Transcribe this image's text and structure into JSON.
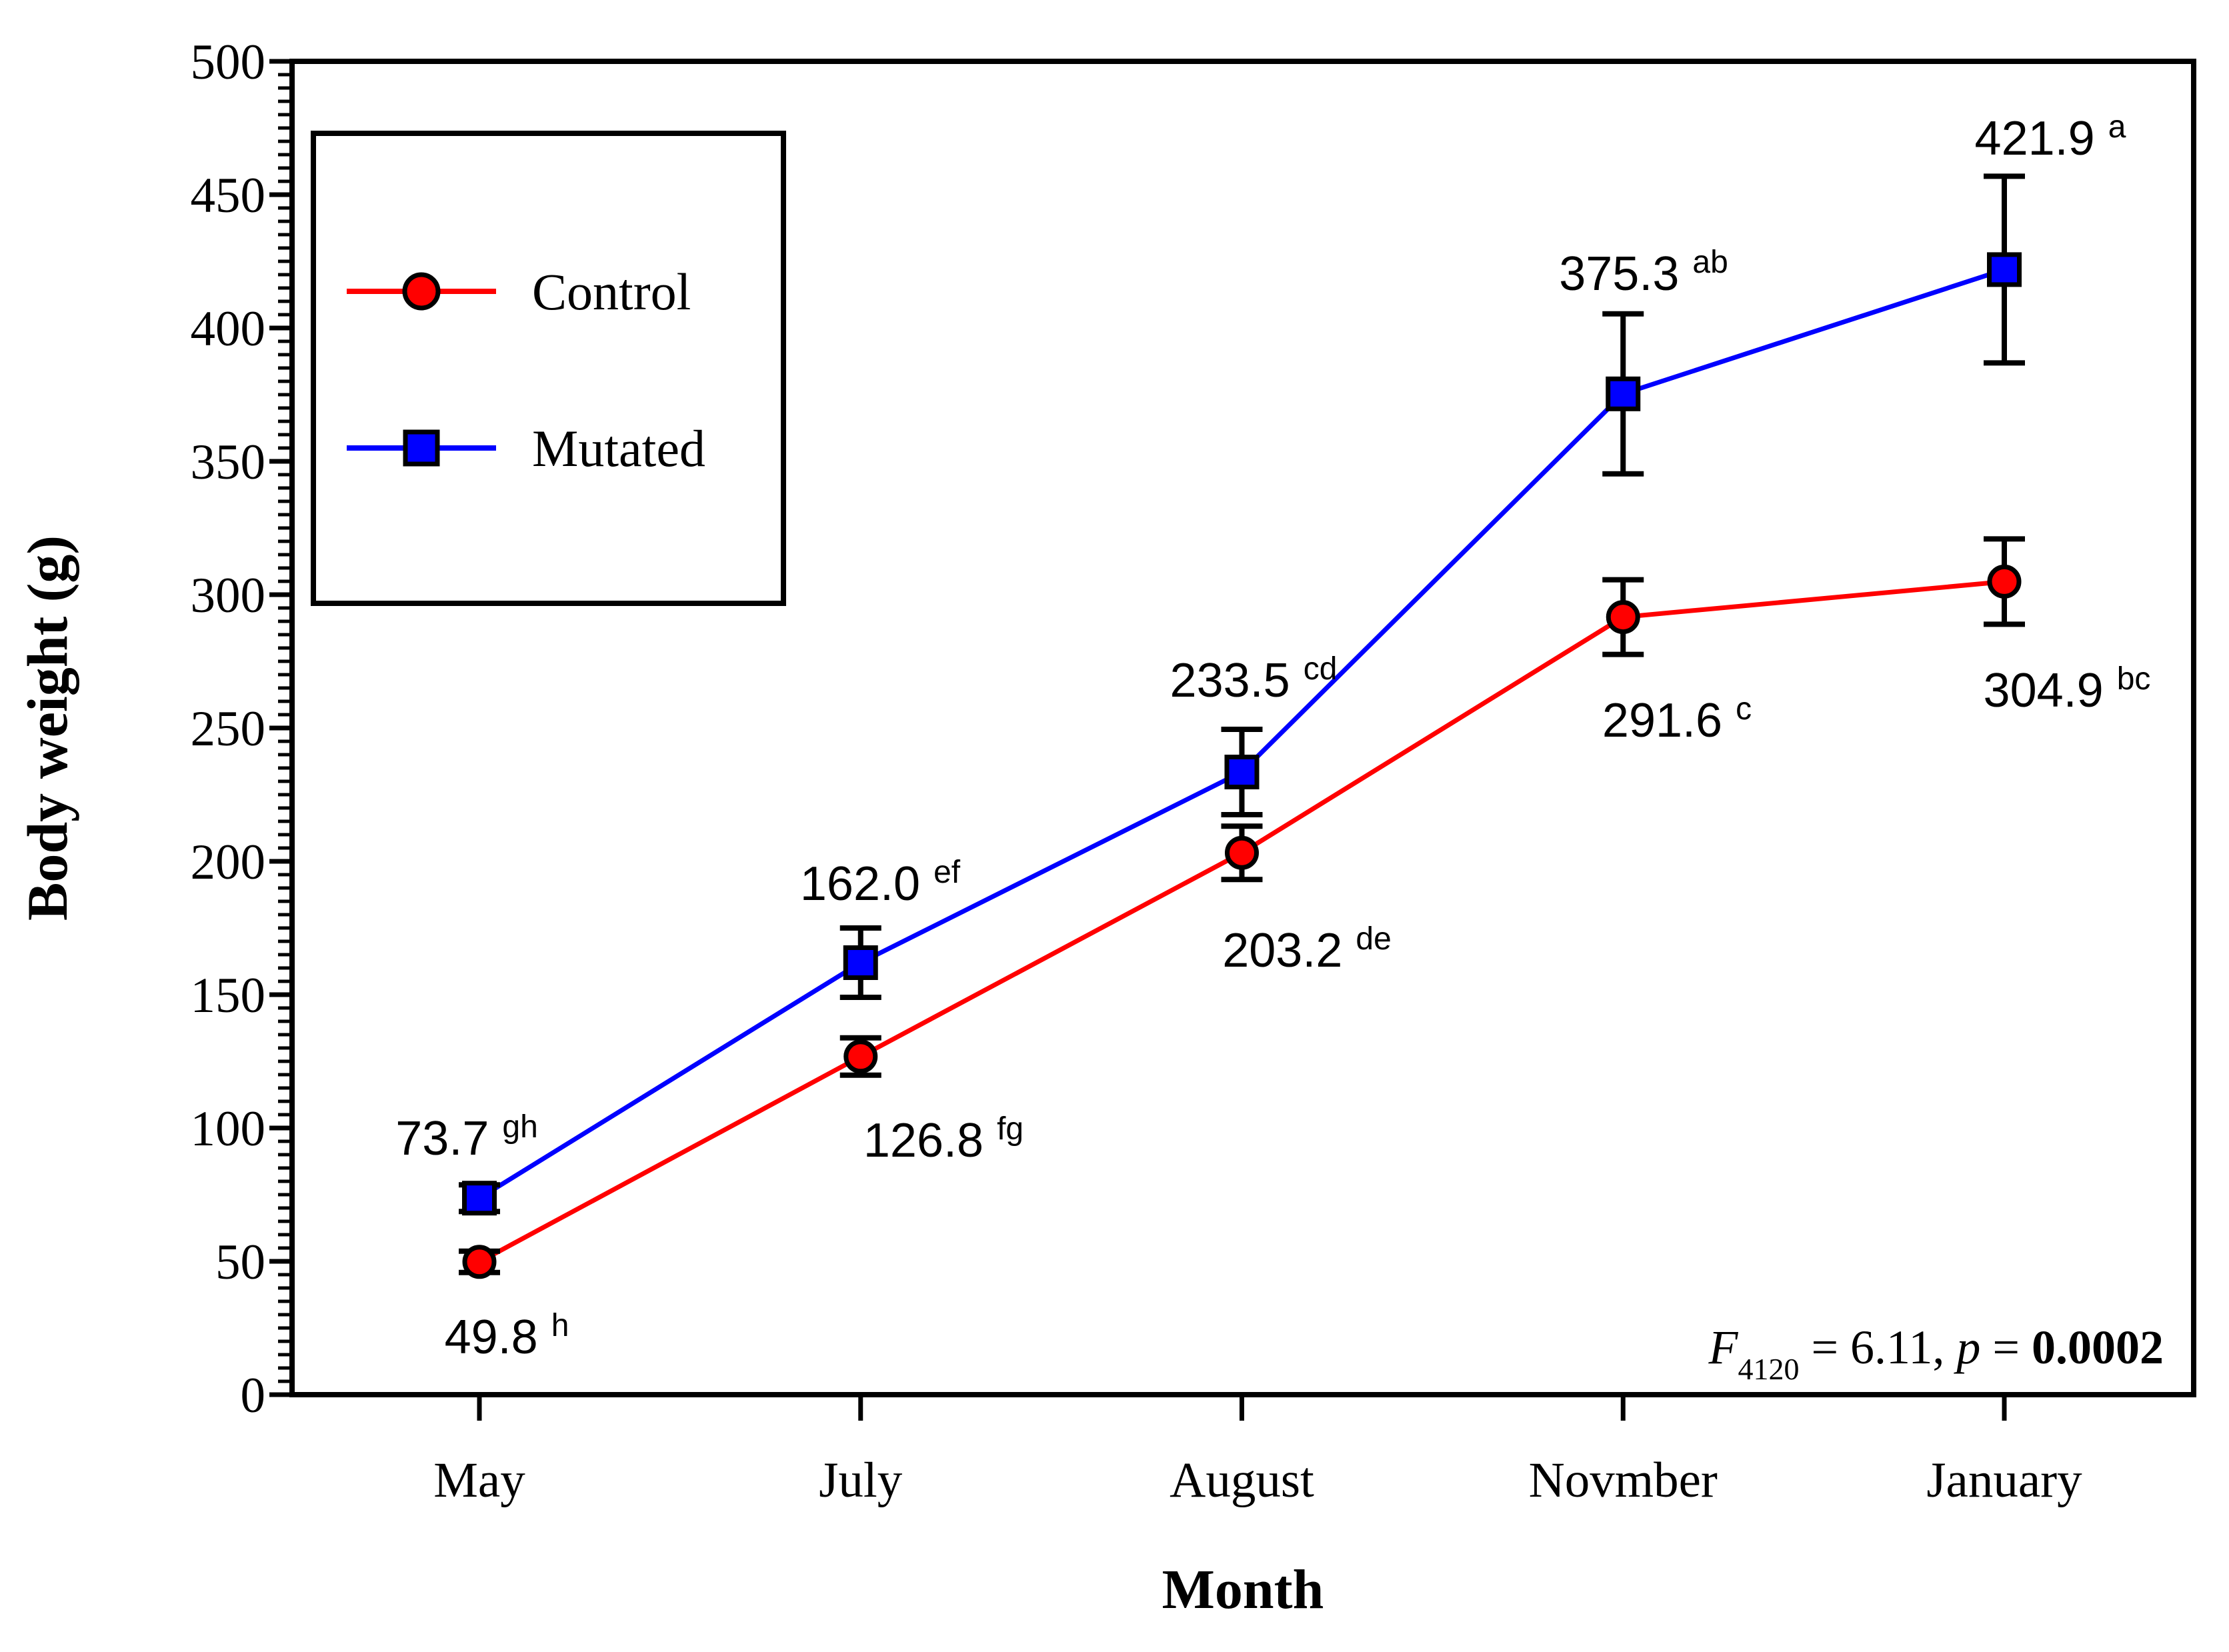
{
  "window": {
    "background": "#FFFFFF",
    "frame_color": "#000000"
  },
  "chart_data": {
    "type": "line",
    "title": "",
    "xlabel": "Month",
    "ylabel": "Body weight (g)",
    "categories": [
      "May",
      "July",
      "August",
      "Novmber",
      "January"
    ],
    "y_axis": {
      "min": 0,
      "max": 500,
      "major_step": 50,
      "minor_step": 5,
      "tick_labels": [
        "0",
        "50",
        "100",
        "150",
        "200",
        "250",
        "300",
        "350",
        "400",
        "450",
        "500"
      ]
    },
    "grid": false,
    "legend": {
      "position": "top-left",
      "items": [
        "Control",
        "Mutated"
      ]
    },
    "series": [
      {
        "name": "Control",
        "color": "#FF0000",
        "marker": "circle",
        "values": [
          49.8,
          126.8,
          203.2,
          291.6,
          304.9
        ],
        "values_text": [
          "49.8",
          "126.8",
          "203.2",
          "291.6",
          "304.9"
        ],
        "errors": [
          4,
          7,
          10,
          14,
          16
        ],
        "sig_letters": [
          "h",
          "fg",
          "de",
          "c",
          "bc"
        ]
      },
      {
        "name": "Mutated",
        "color": "#0000FF",
        "marker": "square",
        "values": [
          73.7,
          162.0,
          233.5,
          375.3,
          421.9
        ],
        "values_text": [
          "73.7",
          "162.0",
          "233.5",
          "375.3",
          "421.9"
        ],
        "errors": [
          5,
          13,
          16,
          30,
          35
        ],
        "sig_letters": [
          "gh",
          "ef",
          "cd",
          "ab",
          "a"
        ]
      }
    ],
    "annotation": {
      "f_symbol": "F",
      "f_subscript": "4120",
      "f_value": " = 6.11, ",
      "p_symbol": "p",
      "p_equals": " = ",
      "p_value": "0.0002"
    }
  }
}
